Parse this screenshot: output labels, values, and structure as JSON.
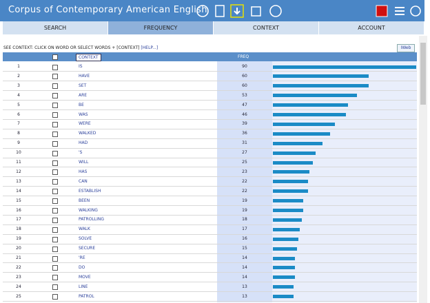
{
  "header": {
    "title": "Corpus of Contemporary American English"
  },
  "tabs": [
    "SEARCH",
    "FREQUENCY",
    "CONTEXT",
    "ACCOUNT"
  ],
  "instructions": {
    "text": "SEE CONTEXT: CLICK ON WORD OR SELECT WORDS + [CONTEXT]",
    "help": "[HELP...]",
    "button": "IWeb"
  },
  "table": {
    "columns": {
      "context": "CONTEXT",
      "freq": "FREQ"
    },
    "rows": [
      {
        "rank": 1,
        "word": "IS",
        "freq": 90
      },
      {
        "rank": 2,
        "word": "HAVE",
        "freq": 60
      },
      {
        "rank": 3,
        "word": "SET",
        "freq": 60
      },
      {
        "rank": 4,
        "word": "ARE",
        "freq": 53
      },
      {
        "rank": 5,
        "word": "BE",
        "freq": 47
      },
      {
        "rank": 6,
        "word": "WAS",
        "freq": 46
      },
      {
        "rank": 7,
        "word": "WERE",
        "freq": 39
      },
      {
        "rank": 8,
        "word": "WALKED",
        "freq": 36
      },
      {
        "rank": 9,
        "word": "HAD",
        "freq": 31
      },
      {
        "rank": 10,
        "word": "'S",
        "freq": 27
      },
      {
        "rank": 11,
        "word": "WILL",
        "freq": 25
      },
      {
        "rank": 12,
        "word": "HAS",
        "freq": 23
      },
      {
        "rank": 13,
        "word": "CAN",
        "freq": 22
      },
      {
        "rank": 14,
        "word": "ESTABLISH",
        "freq": 22
      },
      {
        "rank": 15,
        "word": "BEEN",
        "freq": 19
      },
      {
        "rank": 16,
        "word": "WALKING",
        "freq": 19
      },
      {
        "rank": 17,
        "word": "PATROLLING",
        "freq": 18
      },
      {
        "rank": 18,
        "word": "WALK",
        "freq": 17
      },
      {
        "rank": 19,
        "word": "SOLVE",
        "freq": 16
      },
      {
        "rank": 20,
        "word": "SECURE",
        "freq": 15
      },
      {
        "rank": 21,
        "word": "'RE",
        "freq": 14
      },
      {
        "rank": 22,
        "word": "DO",
        "freq": 14
      },
      {
        "rank": 23,
        "word": "MOVE",
        "freq": 14
      },
      {
        "rank": 24,
        "word": "LINE",
        "freq": 13
      },
      {
        "rank": 25,
        "word": "PATROL",
        "freq": 13
      }
    ]
  }
}
